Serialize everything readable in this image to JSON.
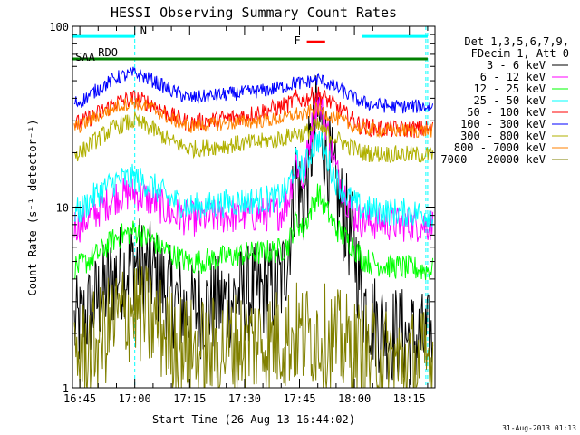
{
  "chart_data": {
    "type": "line",
    "title": "HESSI Observing Summary Count Rates",
    "xlabel": "Start Time (26-Aug-13 16:44:02)",
    "ylabel": "Count Rate (s⁻¹ detector⁻¹)",
    "yscale": "log",
    "ylim": [
      1,
      100
    ],
    "xlim_minutes": [
      -2,
      97
    ],
    "xticks": [
      {
        "t": 0,
        "label": "16:45"
      },
      {
        "t": 15,
        "label": "17:00"
      },
      {
        "t": 30,
        "label": "17:15"
      },
      {
        "t": 45,
        "label": "17:30"
      },
      {
        "t": 60,
        "label": "17:45"
      },
      {
        "t": 75,
        "label": "18:00"
      },
      {
        "t": 90,
        "label": "18:15"
      }
    ],
    "yticks": [
      {
        "v": 1,
        "label": "1"
      },
      {
        "v": 10,
        "label": "10"
      },
      {
        "v": 100,
        "label": "100"
      }
    ],
    "legend_header": [
      "Det 1,3,5,6,7,9,",
      "FDecim 1, Att 0"
    ],
    "legend_position": "right",
    "footer_date": "31-Aug-2013 01:13",
    "flags": [
      {
        "label": "N",
        "color": "#00ffff",
        "segments": [
          [
            -2,
            15
          ],
          [
            77,
            95
          ]
        ],
        "y_rate": 88
      },
      {
        "label": "RDO",
        "color": "#008000",
        "segments": [
          [
            -2,
            95
          ]
        ],
        "y_rate": 66
      },
      {
        "label": "F",
        "color": "#ff0000",
        "segments": [
          [
            62,
            67
          ]
        ],
        "y_rate": 82
      },
      {
        "label": "SAA",
        "color": "#008000",
        "segments": [],
        "y_rate": 66
      }
    ],
    "night_gaps": [
      [
        -2,
        15
      ],
      [
        77,
        95
      ]
    ],
    "series": [
      {
        "name": "3 - 6 keV",
        "color": "#000000",
        "x": [
          0,
          5,
          10,
          15,
          20,
          25,
          30,
          35,
          40,
          45,
          50,
          53,
          55,
          57,
          59,
          61,
          63,
          65,
          67,
          70,
          73,
          75,
          77,
          80,
          85,
          90,
          95
        ],
        "values": [
          2.2,
          3.1,
          4.2,
          5.0,
          4.3,
          3.2,
          2.6,
          2.8,
          3.0,
          3.3,
          3.4,
          3.6,
          3.8,
          6.0,
          15.0,
          10.0,
          20.0,
          33.0,
          22.0,
          12.0,
          8.0,
          6.0,
          3.2,
          2.4,
          2.0,
          1.9,
          1.8
        ]
      },
      {
        "name": "6 - 12 keV",
        "color": "#ff00ff",
        "x": [
          0,
          5,
          10,
          15,
          20,
          25,
          30,
          35,
          40,
          45,
          50,
          53,
          55,
          57,
          59,
          61,
          63,
          65,
          67,
          70,
          73,
          75,
          77,
          80,
          85,
          90,
          95
        ],
        "values": [
          8.0,
          9.6,
          11.5,
          12.0,
          10.8,
          9.2,
          8.6,
          8.7,
          8.9,
          9.0,
          9.1,
          9.2,
          9.4,
          11.0,
          18.0,
          14.0,
          25.0,
          40.0,
          30.0,
          16.0,
          11.0,
          9.0,
          8.4,
          8.2,
          8.1,
          8.0,
          8.0
        ]
      },
      {
        "name": "12 - 25 keV",
        "color": "#00ff00",
        "x": [
          0,
          5,
          10,
          15,
          20,
          25,
          30,
          35,
          40,
          45,
          50,
          53,
          55,
          57,
          59,
          61,
          63,
          65,
          67,
          70,
          73,
          75,
          77,
          80,
          85,
          90,
          95
        ],
        "values": [
          4.7,
          5.5,
          6.8,
          7.4,
          6.5,
          5.5,
          4.9,
          5.1,
          5.3,
          5.5,
          5.6,
          5.7,
          5.8,
          6.2,
          8.5,
          7.5,
          9.5,
          12.0,
          10.0,
          7.6,
          6.6,
          6.0,
          5.2,
          4.9,
          4.7,
          4.6,
          4.5
        ]
      },
      {
        "name": "25 - 50 keV",
        "color": "#00ffff",
        "x": [
          0,
          5,
          10,
          15,
          20,
          25,
          30,
          35,
          40,
          45,
          50,
          53,
          55,
          57,
          59,
          61,
          63,
          65,
          67,
          70,
          73,
          75,
          77,
          80,
          85,
          90,
          95
        ],
        "values": [
          9.5,
          12.0,
          14.0,
          14.5,
          13.0,
          11.0,
          10.0,
          10.2,
          10.5,
          10.8,
          11.0,
          11.2,
          11.5,
          13.0,
          18.0,
          16.0,
          20.0,
          24.0,
          20.0,
          14.0,
          11.5,
          10.5,
          9.8,
          9.6,
          9.4,
          9.3,
          9.2
        ]
      },
      {
        "name": "50 - 100 keV",
        "color": "#ff0000",
        "x": [
          0,
          5,
          10,
          15,
          20,
          25,
          30,
          35,
          40,
          45,
          50,
          53,
          55,
          57,
          59,
          61,
          63,
          65,
          67,
          70,
          73,
          75,
          77,
          80,
          85,
          90,
          95
        ],
        "values": [
          29.0,
          33.0,
          38.0,
          40.0,
          37.0,
          32.0,
          29.0,
          30.0,
          31.0,
          32.0,
          34.0,
          35.0,
          36.0,
          37.0,
          40.0,
          39.0,
          41.0,
          42.0,
          40.0,
          36.0,
          32.0,
          30.0,
          28.0,
          27.5,
          27.0,
          27.0,
          27.0
        ]
      },
      {
        "name": "100 - 300 keV",
        "color": "#0000ff",
        "x": [
          0,
          5,
          10,
          15,
          20,
          25,
          30,
          35,
          40,
          45,
          50,
          53,
          55,
          57,
          59,
          61,
          63,
          65,
          67,
          70,
          73,
          75,
          77,
          80,
          85,
          90,
          95
        ],
        "values": [
          38.0,
          45.0,
          52.0,
          55.0,
          50.0,
          44.0,
          40.0,
          41.0,
          42.0,
          43.0,
          44.0,
          45.0,
          46.0,
          47.0,
          49.0,
          48.0,
          50.0,
          51.0,
          49.0,
          46.0,
          42.0,
          40.0,
          38.0,
          37.0,
          36.0,
          36.0,
          36.0
        ]
      },
      {
        "name": "300 - 800 keV",
        "color": "#b0b000",
        "x": [
          0,
          5,
          10,
          15,
          20,
          25,
          30,
          35,
          40,
          45,
          50,
          53,
          55,
          57,
          59,
          61,
          63,
          65,
          67,
          70,
          73,
          75,
          77,
          80,
          85,
          90,
          95
        ],
        "values": [
          20.0,
          24.0,
          28.0,
          30.0,
          27.0,
          23.0,
          21.0,
          21.5,
          22.0,
          22.5,
          23.0,
          23.5,
          24.0,
          24.5,
          26.0,
          25.0,
          27.0,
          28.0,
          26.0,
          24.0,
          22.0,
          21.0,
          20.0,
          19.8,
          19.6,
          19.5,
          19.5
        ]
      },
      {
        "name": "800 - 7000 keV",
        "color": "#ff8000",
        "x": [
          0,
          5,
          10,
          15,
          20,
          25,
          30,
          35,
          40,
          45,
          50,
          53,
          55,
          57,
          59,
          61,
          63,
          65,
          67,
          70,
          73,
          75,
          77,
          80,
          85,
          90,
          95
        ],
        "values": [
          28.0,
          32.0,
          36.0,
          38.0,
          35.0,
          30.5,
          28.0,
          28.5,
          29.0,
          29.5,
          30.0,
          30.5,
          31.0,
          31.5,
          33.0,
          32.0,
          34.0,
          35.0,
          33.0,
          31.0,
          29.0,
          28.0,
          27.0,
          26.8,
          26.5,
          26.5,
          26.5
        ]
      },
      {
        "name": "7000 - 20000 keV",
        "color": "#808000",
        "x": [
          0,
          5,
          10,
          15,
          20,
          25,
          30,
          35,
          40,
          45,
          50,
          53,
          55,
          57,
          59,
          61,
          63,
          65,
          67,
          70,
          73,
          75,
          77,
          80,
          85,
          90,
          95
        ],
        "values": [
          1.5,
          1.8,
          2.4,
          2.8,
          2.3,
          1.9,
          1.6,
          1.6,
          1.7,
          1.8,
          1.8,
          1.8,
          1.9,
          1.9,
          2.0,
          1.9,
          2.0,
          2.0,
          1.9,
          1.8,
          1.7,
          1.6,
          1.5,
          1.5,
          1.4,
          1.4,
          1.4
        ]
      }
    ]
  }
}
